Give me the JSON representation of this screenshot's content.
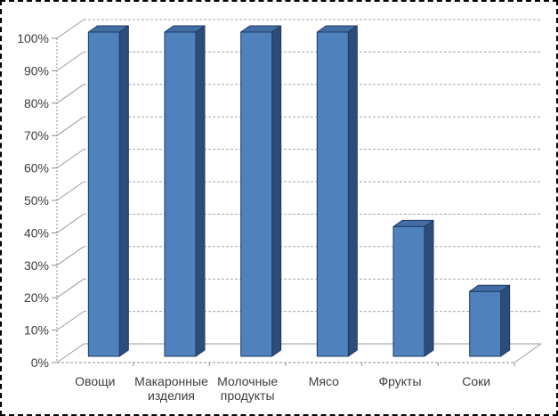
{
  "chart_data": {
    "type": "bar",
    "style": "3d-column",
    "title": "",
    "xlabel": "",
    "ylabel": "",
    "categories": [
      "Овощи",
      "Макаронные изделия",
      "Молочные продукты",
      "Мясо",
      "Фрукты",
      "Соки"
    ],
    "values": [
      100,
      100,
      100,
      100,
      40,
      20
    ],
    "value_unit": "%",
    "ylim": [
      0,
      100
    ],
    "ytick_step": 10,
    "ytick_labels": [
      "0%",
      "10%",
      "20%",
      "30%",
      "40%",
      "50%",
      "60%",
      "70%",
      "80%",
      "90%",
      "100%"
    ],
    "grid": "horizontal-dashed",
    "legend": "none",
    "colors": {
      "bar_front": "#4f81bd",
      "bar_top": "#426ea5",
      "bar_side": "#2c4d79",
      "bar_outline": "#1e3a5f",
      "gridline": "#a6a6a6",
      "wall_line": "#9a9a9a",
      "axis_line": "#8c8c8c",
      "label_text": "#3d3d3d",
      "page_border": "#000000",
      "background": "#ffffff"
    }
  }
}
